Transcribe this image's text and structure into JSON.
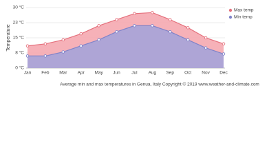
{
  "chart_data": {
    "type": "area",
    "y_label": "Temperature",
    "caption": "Average min and max temperatures in Genua, Italy   Copyright © 2019 www.weather-and-climate.com",
    "categories": [
      "Jan",
      "Feb",
      "Mar",
      "Apr",
      "May",
      "Jun",
      "Jul",
      "Aug",
      "Sep",
      "Oct",
      "Nov",
      "Dec"
    ],
    "series": [
      {
        "name": "Max temp",
        "color": "#e5707c",
        "fill": "#f5a9b0",
        "values": [
          11,
          12,
          14,
          17,
          21,
          24,
          27,
          27.5,
          24,
          20,
          15,
          12
        ]
      },
      {
        "name": "Min temp",
        "color": "#7f83c9",
        "fill": "#a6a4d9",
        "values": [
          6,
          6,
          8,
          11,
          14,
          18,
          21,
          21,
          18,
          14,
          10,
          7
        ]
      }
    ],
    "ylim": [
      0,
      30
    ],
    "yticks": [
      {
        "value": 0,
        "label": "0 °C"
      },
      {
        "value": 7.5,
        "label": "8 °C"
      },
      {
        "value": 15,
        "label": "15 °C"
      },
      {
        "value": 22.5,
        "label": "23 °C"
      },
      {
        "value": 30,
        "label": "30 °C"
      }
    ],
    "grid": true,
    "legend": "top-right"
  }
}
